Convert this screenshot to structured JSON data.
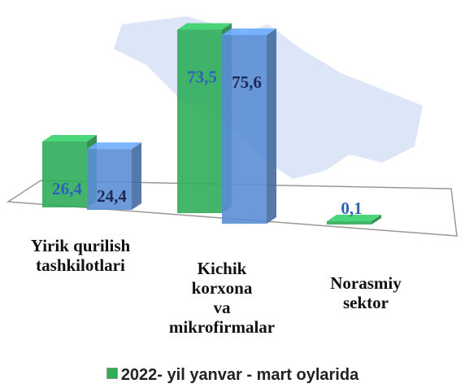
{
  "chart_data": {
    "type": "bar3d",
    "categories": [
      "Yirik qurilish\ntashkilotlari",
      "Kichik\nkorxona\nva\nmikrofirmalar",
      "Norasmiy\nsektor"
    ],
    "series": [
      {
        "name": "2022-  yil yanvar - mart oylarida",
        "color": "#2fae5a",
        "values": [
          26.4,
          73.5,
          0.1
        ],
        "value_labels": [
          "26,4",
          "73,5",
          "0,1"
        ]
      },
      {
        "color": "#5b8fd6",
        "values": [
          24.4,
          75.6,
          null
        ],
        "value_labels": [
          "24,4",
          "75,6",
          null
        ]
      }
    ],
    "legend": "bottom"
  }
}
